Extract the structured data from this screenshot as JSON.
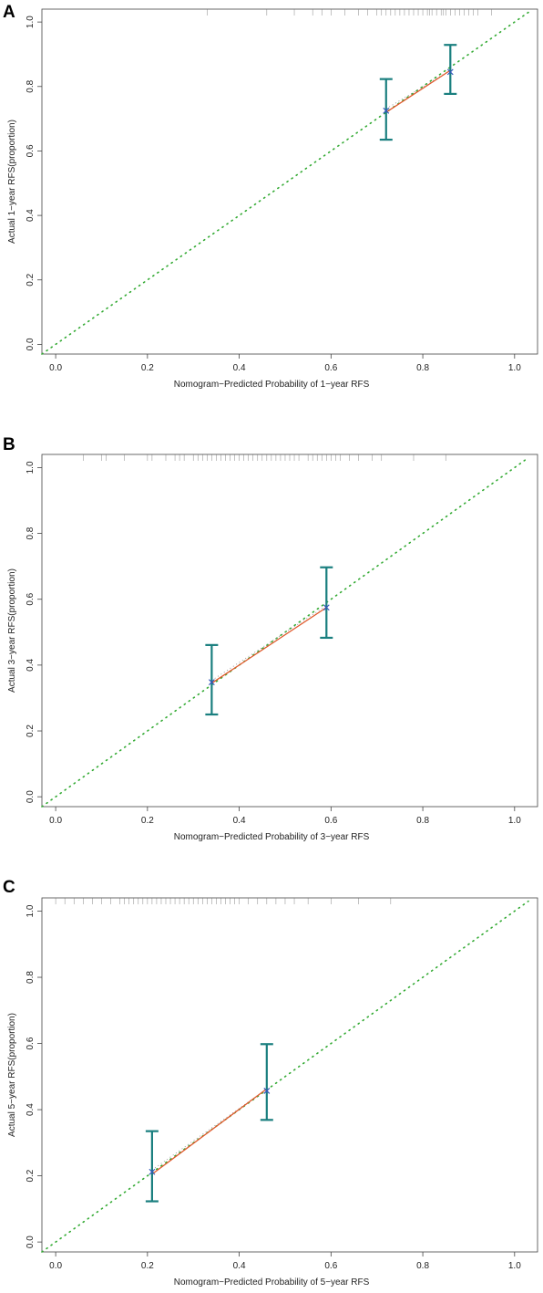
{
  "chart_data": [
    {
      "panel": "A",
      "type": "line",
      "xlabel": "Nomogram−Predicted Probability of 1−year RFS",
      "ylabel": "Actual 1−year RFS(proportion)",
      "xlim": [
        -0.03,
        1.05
      ],
      "ylim": [
        -0.03,
        1.04
      ],
      "xticks": [
        "0.0",
        "0.2",
        "0.4",
        "0.6",
        "0.8",
        "1.0"
      ],
      "yticks": [
        "0.0",
        "0.2",
        "0.4",
        "0.6",
        "0.8",
        "1.0"
      ],
      "reference_line": {
        "x": [
          -0.03,
          1.03
        ],
        "y": [
          -0.03,
          1.03
        ],
        "style": "dotted",
        "color": "#33aa33"
      },
      "calibration_line": {
        "x": [
          0.72,
          0.86
        ],
        "y": [
          0.72,
          0.85
        ],
        "color": "#e0582a"
      },
      "points": [
        {
          "x": 0.72,
          "y": 0.725,
          "lo": 0.635,
          "hi": 0.823
        },
        {
          "x": 0.86,
          "y": 0.845,
          "lo": 0.777,
          "hi": 0.929
        }
      ],
      "errorbar_color": "#1a7f7f",
      "point_color": "#3355bb",
      "rug": [
        0.33,
        0.46,
        0.52,
        0.56,
        0.58,
        0.6,
        0.63,
        0.66,
        0.68,
        0.7,
        0.71,
        0.72,
        0.73,
        0.74,
        0.75,
        0.76,
        0.77,
        0.78,
        0.79,
        0.8,
        0.81,
        0.815,
        0.82,
        0.83,
        0.84,
        0.845,
        0.85,
        0.86,
        0.87,
        0.88,
        0.89,
        0.9,
        0.91,
        0.92,
        0.95
      ]
    },
    {
      "panel": "B",
      "type": "line",
      "xlabel": "Nomogram−Predicted Probability of 3−year RFS",
      "ylabel": "Actual 3−year RFS(proportion)",
      "xlim": [
        -0.03,
        1.05
      ],
      "ylim": [
        -0.03,
        1.04
      ],
      "xticks": [
        "0.0",
        "0.2",
        "0.4",
        "0.6",
        "0.8",
        "1.0"
      ],
      "yticks": [
        "0.0",
        "0.2",
        "0.4",
        "0.6",
        "0.8",
        "1.0"
      ],
      "reference_line": {
        "x": [
          -0.03,
          1.03
        ],
        "y": [
          -0.03,
          1.03
        ],
        "style": "dotted",
        "color": "#33aa33"
      },
      "calibration_line": {
        "x": [
          0.34,
          0.59
        ],
        "y": [
          0.345,
          0.575
        ],
        "color": "#e0582a"
      },
      "points": [
        {
          "x": 0.34,
          "y": 0.348,
          "lo": 0.25,
          "hi": 0.461
        },
        {
          "x": 0.59,
          "y": 0.575,
          "lo": 0.483,
          "hi": 0.697
        }
      ],
      "errorbar_color": "#1a7f7f",
      "point_color": "#3355bb",
      "rug": [
        0.06,
        0.1,
        0.11,
        0.15,
        0.2,
        0.21,
        0.24,
        0.26,
        0.27,
        0.28,
        0.3,
        0.31,
        0.32,
        0.33,
        0.34,
        0.35,
        0.36,
        0.37,
        0.38,
        0.39,
        0.4,
        0.41,
        0.42,
        0.43,
        0.44,
        0.45,
        0.46,
        0.47,
        0.48,
        0.49,
        0.5,
        0.51,
        0.52,
        0.53,
        0.55,
        0.56,
        0.57,
        0.58,
        0.59,
        0.6,
        0.61,
        0.62,
        0.64,
        0.66,
        0.69,
        0.71,
        0.78,
        0.85
      ]
    },
    {
      "panel": "C",
      "type": "line",
      "xlabel": "Nomogram−Predicted Probability of 5−year RFS",
      "ylabel": "Actual 5−year RFS(proportion)",
      "xlim": [
        -0.03,
        1.05
      ],
      "ylim": [
        -0.03,
        1.04
      ],
      "xticks": [
        "0.0",
        "0.2",
        "0.4",
        "0.6",
        "0.8",
        "1.0"
      ],
      "yticks": [
        "0.0",
        "0.2",
        "0.4",
        "0.6",
        "0.8",
        "1.0"
      ],
      "reference_line": {
        "x": [
          -0.03,
          1.03
        ],
        "y": [
          -0.03,
          1.03
        ],
        "style": "dotted",
        "color": "#33aa33"
      },
      "calibration_line": {
        "x": [
          0.21,
          0.46
        ],
        "y": [
          0.205,
          0.463
        ],
        "color": "#e0582a"
      },
      "points": [
        {
          "x": 0.21,
          "y": 0.212,
          "lo": 0.123,
          "hi": 0.335
        },
        {
          "x": 0.46,
          "y": 0.457,
          "lo": 0.369,
          "hi": 0.598
        }
      ],
      "errorbar_color": "#1a7f7f",
      "point_color": "#3355bb",
      "rug": [
        0.0,
        0.02,
        0.04,
        0.06,
        0.08,
        0.1,
        0.12,
        0.14,
        0.15,
        0.16,
        0.17,
        0.18,
        0.19,
        0.2,
        0.21,
        0.22,
        0.23,
        0.24,
        0.25,
        0.26,
        0.27,
        0.28,
        0.29,
        0.3,
        0.31,
        0.32,
        0.33,
        0.34,
        0.35,
        0.36,
        0.37,
        0.38,
        0.39,
        0.4,
        0.42,
        0.44,
        0.46,
        0.48,
        0.5,
        0.52,
        0.55,
        0.6,
        0.66,
        0.73
      ]
    }
  ]
}
